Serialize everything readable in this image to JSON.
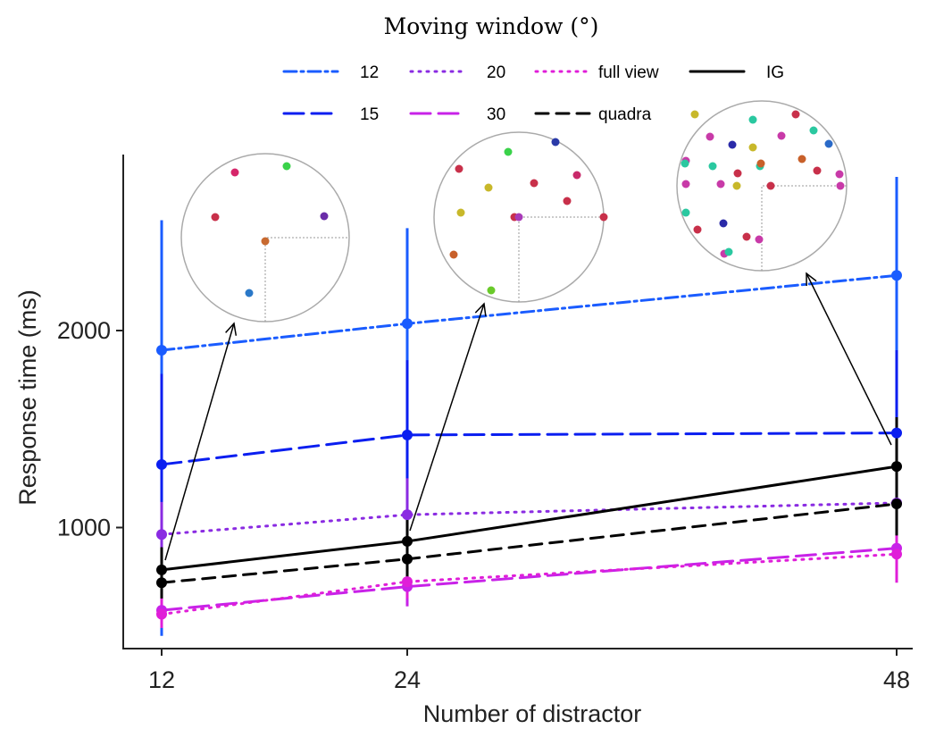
{
  "chart_data": {
    "type": "line",
    "title": "Moving window (°)",
    "xlabel": "Number of distractor",
    "ylabel": "Response time (ms)",
    "x": [
      12,
      24,
      48
    ],
    "x_tick_labels": [
      "12",
      "24",
      "48"
    ],
    "y_ticks": [
      1000,
      2000
    ],
    "y_tick_labels": [
      "1000",
      "2000"
    ],
    "ylim": [
      450,
      2900
    ],
    "legend_placement": "top",
    "series": [
      {
        "name": "12",
        "color": "#1a5cff",
        "dash": "dashdot",
        "values": [
          1900,
          2035,
          2280
        ],
        "err_low": [
          450,
          720,
          1560
        ],
        "err_high": [
          2560,
          2520,
          2780
        ]
      },
      {
        "name": "15",
        "color": "#0a1ef0",
        "dash": "longdash",
        "values": [
          1320,
          1470,
          1480
        ],
        "err_low": [
          880,
          1060,
          1150
        ],
        "err_high": [
          1780,
          1850,
          1900
        ]
      },
      {
        "name": "20",
        "color": "#8a2be2",
        "dash": "dotted",
        "values": [
          965,
          1065,
          1125
        ],
        "err_low": [
          800,
          880,
          900
        ],
        "err_high": [
          1130,
          1250,
          1350
        ]
      },
      {
        "name": "30",
        "color": "#c822e8",
        "dash": "longdash",
        "values": [
          580,
          700,
          895
        ],
        "err_low": [
          500,
          600,
          760
        ],
        "err_high": [
          660,
          800,
          1030
        ]
      },
      {
        "name": "full view",
        "color": "#e01ed8",
        "dash": "dotted",
        "values": [
          560,
          725,
          865
        ],
        "err_low": [
          490,
          640,
          720
        ],
        "err_high": [
          640,
          810,
          1010
        ]
      },
      {
        "name": "quadra",
        "color": "#000000",
        "dash": "dashed",
        "values": [
          720,
          840,
          1120
        ],
        "err_low": [
          640,
          740,
          960
        ],
        "err_high": [
          820,
          960,
          1300
        ]
      },
      {
        "name": "IG",
        "color": "#000000",
        "dash": "solid",
        "values": [
          785,
          930,
          1310
        ],
        "err_low": [
          690,
          820,
          1100
        ],
        "err_high": [
          900,
          1060,
          1560
        ]
      }
    ],
    "insets": [
      {
        "distractors": 12,
        "dots": [
          "#d6266a",
          "#3ad24a",
          "#c8304a",
          "#6a2ca8",
          "#c86a30",
          "#2a78c8"
        ]
      },
      {
        "distractors": 24,
        "dots": [
          "#2a3aa8",
          "#c8304a",
          "#3ad24a",
          "#c82a6a",
          "#c8b82a",
          "#c8304a",
          "#c8304a",
          "#c8b82a",
          "#c8304a",
          "#c8602a",
          "#c8304a",
          "#6aca2a",
          "#a83ab8"
        ]
      },
      {
        "distractors": 48,
        "dots": [
          "#c8b82a",
          "#c83aa8",
          "#2ac8a0",
          "#c8304a",
          "#2ac8a0",
          "#2a2aa8",
          "#c83aa8",
          "#c83aa8",
          "#c8b82a",
          "#2ac8a0",
          "#c8602a",
          "#2a6ac8",
          "#2ac8a0",
          "#c8304a",
          "#c83aa8",
          "#c8b82a",
          "#2ac8a0",
          "#c8602a",
          "#c8304a",
          "#c83aa8",
          "#c83aa8",
          "#c8304a",
          "#2ac8a0",
          "#c8304a",
          "#2a2aa8",
          "#c8304a",
          "#c83aa8",
          "#c83aa8",
          "#2ac8a0",
          "#c83aa8"
        ]
      }
    ]
  }
}
